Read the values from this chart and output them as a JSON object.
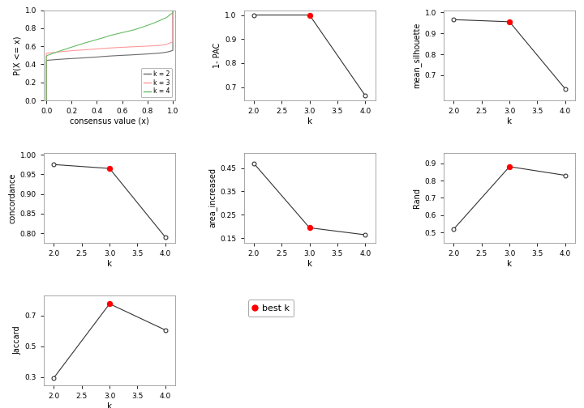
{
  "ecdf": {
    "k2": {
      "color": "#696969"
    },
    "k3": {
      "color": "#FF9999"
    },
    "k4": {
      "color": "#66BB66"
    }
  },
  "pac": {
    "k": [
      2,
      3,
      4
    ],
    "y": [
      1.0,
      1.0,
      0.665
    ],
    "best_k": 3,
    "ylabel": "1- PAC",
    "ylim": [
      0.645,
      1.02
    ],
    "yticks": [
      0.7,
      0.8,
      0.9,
      1.0
    ]
  },
  "silhouette": {
    "k": [
      2,
      3,
      4
    ],
    "y": [
      0.965,
      0.955,
      0.635
    ],
    "best_k": 3,
    "ylabel": "mean_silhouette",
    "ylim": [
      0.58,
      1.01
    ],
    "yticks": [
      0.7,
      0.8,
      0.9,
      1.0
    ]
  },
  "concordance": {
    "k": [
      2,
      3,
      4
    ],
    "y": [
      0.975,
      0.965,
      0.79
    ],
    "best_k": 3,
    "ylabel": "concordance",
    "ylim": [
      0.775,
      1.005
    ],
    "yticks": [
      0.8,
      0.85,
      0.9,
      0.95,
      1.0
    ]
  },
  "area_increased": {
    "k": [
      2,
      3,
      4
    ],
    "y": [
      0.47,
      0.195,
      0.165
    ],
    "best_k": 3,
    "ylabel": "area_increased",
    "ylim": [
      0.13,
      0.515
    ],
    "yticks": [
      0.15,
      0.25,
      0.35,
      0.45
    ]
  },
  "rand": {
    "k": [
      2,
      3,
      4
    ],
    "y": [
      0.52,
      0.88,
      0.83
    ],
    "best_k": 3,
    "ylabel": "Rand",
    "ylim": [
      0.44,
      0.96
    ],
    "yticks": [
      0.5,
      0.6,
      0.7,
      0.8,
      0.9
    ]
  },
  "jaccard": {
    "k": [
      2,
      3,
      4
    ],
    "y": [
      0.295,
      0.775,
      0.605
    ],
    "best_k": 3,
    "ylabel": "Jaccard",
    "ylim": [
      0.245,
      0.83
    ],
    "yticks": [
      0.3,
      0.5,
      0.7
    ]
  },
  "line_color": "#333333",
  "open_marker": {
    "facecolor": "white",
    "edgecolor": "#333333",
    "markersize": 3.5
  },
  "best_marker": {
    "facecolor": "red",
    "edgecolor": "red",
    "markersize": 4.5
  },
  "xlabel": "k",
  "xticks": [
    2.0,
    2.5,
    3.0,
    3.5,
    4.0
  ]
}
